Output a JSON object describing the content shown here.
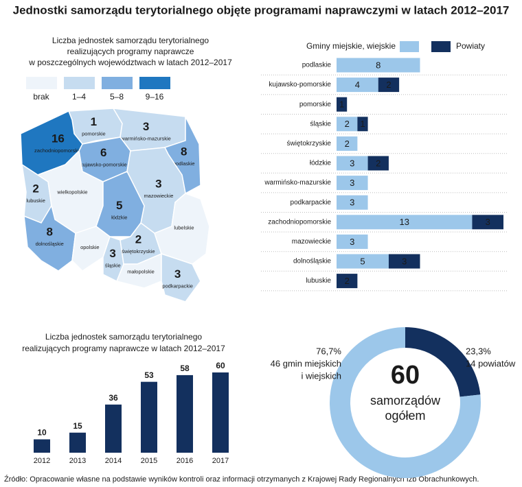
{
  "title": "Jednostki samorządu terytorialnego objęte programami naprawczymi w latach 2012–2017",
  "source": "Źródło: Opracowanie własne na podstawie wyników kontroli oraz informacji otrzymanych z Krajowej Rady Regionalnych Izb Obrachunkowych.",
  "chart_data": [
    {
      "type": "choropleth",
      "subtitle": [
        "Liczba jednostek samorządu terytorialnego",
        "realizujących programy naprawcze",
        "w poszczególnych województwach w latach 2012–2017"
      ],
      "legend": [
        {
          "label": "brak",
          "color": "#eef4fa"
        },
        {
          "label": "1–4",
          "color": "#c6dcf0"
        },
        {
          "label": "5–8",
          "color": "#80afe0"
        },
        {
          "label": "9–16",
          "color": "#1f77c0"
        }
      ],
      "regions": [
        {
          "name": "pomorskie",
          "value": 1,
          "color": "#c6dcf0"
        },
        {
          "name": "warmińsko-mazurskie",
          "value": 3,
          "color": "#c6dcf0"
        },
        {
          "name": "podlaskie",
          "value": 8,
          "color": "#80afe0"
        },
        {
          "name": "zachodniopomorskie",
          "value": 16,
          "color": "#1f77c0"
        },
        {
          "name": "kujawsko-pomorskie",
          "value": 6,
          "color": "#80afe0"
        },
        {
          "name": "lubuskie",
          "value": 2,
          "color": "#c6dcf0"
        },
        {
          "name": "wielkopolskie",
          "value": null,
          "color": "#eef4fa"
        },
        {
          "name": "mazowieckie",
          "value": 3,
          "color": "#c6dcf0"
        },
        {
          "name": "łódzkie",
          "value": 5,
          "color": "#80afe0"
        },
        {
          "name": "dolnośląskie",
          "value": 8,
          "color": "#80afe0"
        },
        {
          "name": "opolskie",
          "value": null,
          "color": "#eef4fa"
        },
        {
          "name": "śląskie",
          "value": 3,
          "color": "#c6dcf0"
        },
        {
          "name": "świętokrzyskie",
          "value": 2,
          "color": "#c6dcf0"
        },
        {
          "name": "małopolskie",
          "value": null,
          "color": "#eef4fa"
        },
        {
          "name": "lubelskie",
          "value": null,
          "color": "#eef4fa"
        },
        {
          "name": "podkarpackie",
          "value": 3,
          "color": "#c6dcf0"
        }
      ]
    },
    {
      "type": "hbar",
      "categories": [
        "podlaskie",
        "kujawsko-pomorskie",
        "pomorskie",
        "śląskie",
        "świętokrzyskie",
        "łódzkie",
        "warmińsko-mazurskie",
        "podkarpackie",
        "zachodniopomorskie",
        "mazowieckie",
        "dolnośląskie",
        "lubuskie"
      ],
      "series": [
        {
          "name": "Gminy miejskie, wiejskie",
          "color": "#9cc7ea",
          "values": [
            8,
            4,
            null,
            2,
            2,
            3,
            3,
            3,
            13,
            3,
            5,
            null
          ]
        },
        {
          "name": "Powiaty",
          "color": "#13305e",
          "values": [
            null,
            2,
            1,
            1,
            null,
            2,
            null,
            null,
            3,
            null,
            3,
            2
          ]
        }
      ]
    },
    {
      "type": "bar",
      "subtitle": [
        "Liczba jednostek samorządu terytorialnego",
        "realizujących programy naprawcze w latach 2012–2017"
      ],
      "categories": [
        "2012",
        "2013",
        "2014",
        "2015",
        "2016",
        "2017"
      ],
      "values": [
        10,
        15,
        36,
        53,
        58,
        60
      ],
      "color": "#13305e"
    },
    {
      "type": "donut",
      "center_value": 60,
      "center_label": [
        "samorządów",
        "ogółem"
      ],
      "segments": [
        {
          "value": 76.7,
          "value_label": "76,7%",
          "description": [
            "46 gmin miejskich",
            "i wiejskich"
          ],
          "color": "#9cc7ea"
        },
        {
          "value": 23.3,
          "value_label": "23,3%",
          "description": [
            "14 powiatów"
          ],
          "color": "#13305e"
        }
      ]
    }
  ]
}
